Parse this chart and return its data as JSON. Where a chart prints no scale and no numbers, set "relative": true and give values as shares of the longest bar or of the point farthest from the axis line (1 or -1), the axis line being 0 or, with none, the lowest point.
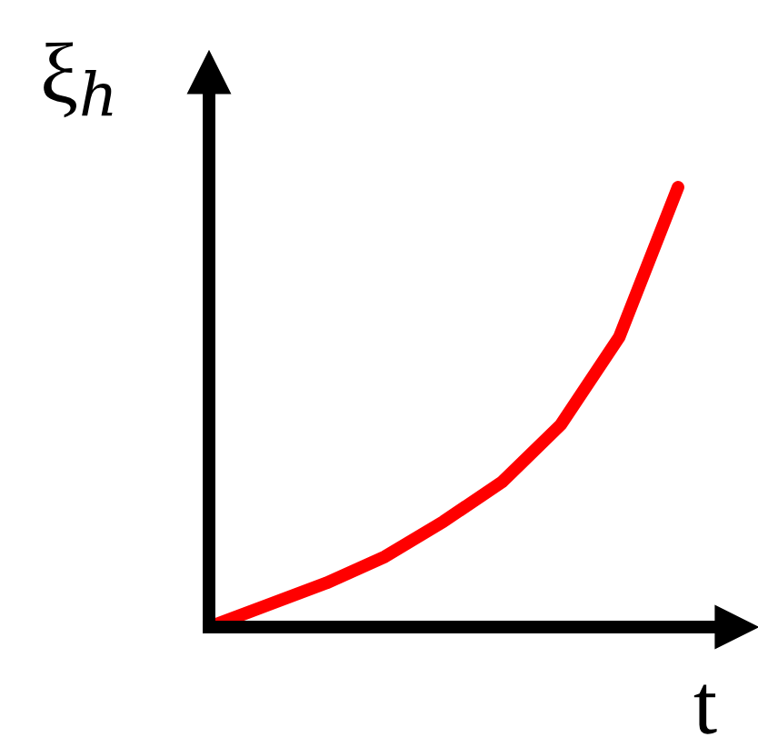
{
  "chart_data": {
    "type": "line",
    "relative": true,
    "xlabel": "t",
    "ylabel": "ξ$_{h}$",
    "categories": [
      null,
      null,
      null,
      null,
      null,
      null,
      null,
      null,
      null
    ],
    "series": [
      {
        "color": "#ff0000",
        "values": [
          0,
          0.05,
          0.1,
          0.16,
          0.24,
          0.33,
          0.46,
          0.66,
          1.0
        ]
      }
    ],
    "legend": false,
    "marker": "none",
    "line_style": "solid"
  }
}
